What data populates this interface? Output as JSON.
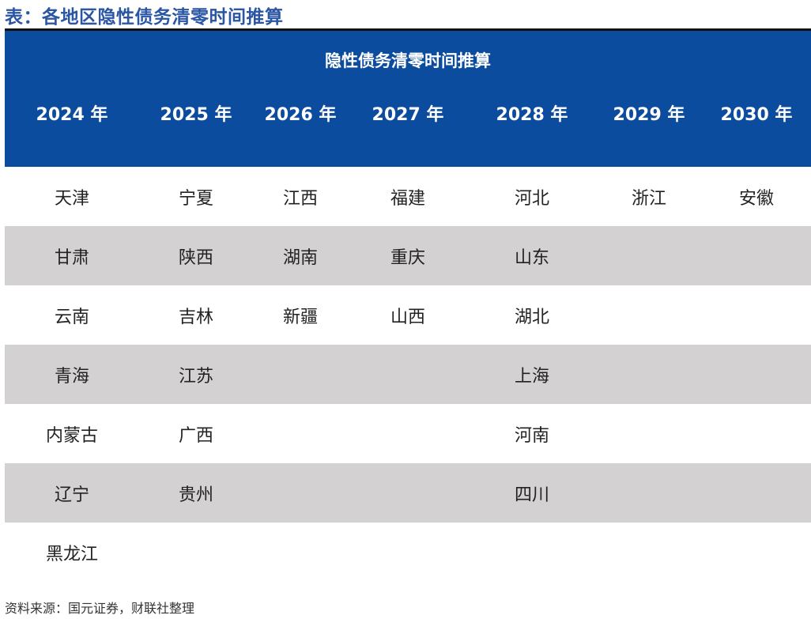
{
  "page": {
    "title": "表：各地区隐性债务清零时间推算",
    "source": "资料来源：国元证券，财联社整理"
  },
  "table": {
    "caption": "隐性债务清零时间推算",
    "headers": [
      "2024 年",
      "2025 年",
      "2026 年",
      "2027 年",
      "2028 年",
      "2029 年",
      "2030 年"
    ],
    "rows": [
      [
        "天津",
        "宁夏",
        "江西",
        "福建",
        "河北",
        "浙江",
        "安徽"
      ],
      [
        "甘肃",
        "陕西",
        "湖南",
        "重庆",
        "山东",
        "",
        ""
      ],
      [
        "云南",
        "吉林",
        "新疆",
        "山西",
        "湖北",
        "",
        ""
      ],
      [
        "青海",
        "江苏",
        "",
        "",
        "上海",
        "",
        ""
      ],
      [
        "内蒙古",
        "广西",
        "",
        "",
        "河南",
        "",
        ""
      ],
      [
        "辽宁",
        "贵州",
        "",
        "",
        "四川",
        "",
        ""
      ],
      [
        "黑龙江",
        "",
        "",
        "",
        "",
        "",
        ""
      ]
    ]
  },
  "colors": {
    "title": "#2a56a3",
    "header_band": "#0c4c9e",
    "row_shade": "#d3d1d2"
  }
}
